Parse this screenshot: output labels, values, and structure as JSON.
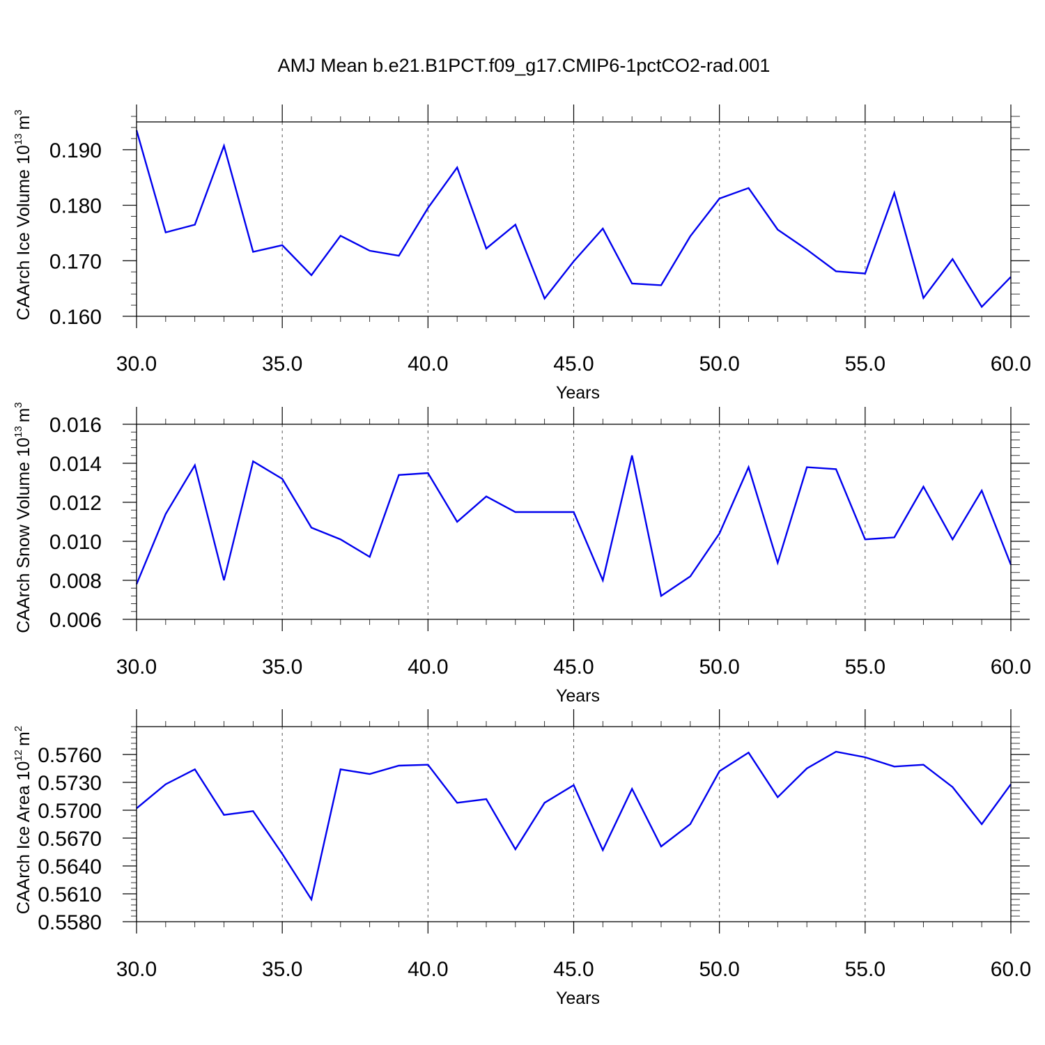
{
  "title": "AMJ Mean b.e21.B1PCT.f09_g17.CMIP6-1pctCO2-rad.001",
  "colors": {
    "series": "#0000ee",
    "grid": "#555555",
    "axis": "#000000"
  },
  "chart_data": [
    {
      "type": "line",
      "ylabel": "CAArch Ice Volume 10",
      "ylabel_exp": "13",
      "ylabel_unit": "m",
      "ylabel_unit_exp": "3",
      "xlabel": "Years",
      "xlim": [
        30,
        60
      ],
      "ylim": [
        0.16,
        0.195
      ],
      "xticks": [
        30,
        35,
        40,
        45,
        50,
        55,
        60
      ],
      "xtick_labels": [
        "30.0",
        "35.0",
        "40.0",
        "45.0",
        "50.0",
        "55.0",
        "60.0"
      ],
      "yticks": [
        0.16,
        0.17,
        0.18,
        0.19
      ],
      "ytick_labels": [
        "0.160",
        "0.170",
        "0.180",
        "0.190"
      ],
      "yminor_step": 0.002,
      "grid": "dashed vertical at major x ticks",
      "x": [
        30,
        31,
        32,
        33,
        34,
        35,
        36,
        37,
        38,
        39,
        40,
        41,
        42,
        43,
        44,
        45,
        46,
        47,
        48,
        49,
        50,
        51,
        52,
        53,
        54,
        55,
        56,
        57,
        58,
        59,
        60
      ],
      "values": [
        0.1935,
        0.1751,
        0.1765,
        0.1907,
        0.1716,
        0.1728,
        0.1674,
        0.1745,
        0.1718,
        0.1709,
        0.1795,
        0.1868,
        0.1722,
        0.1765,
        0.1632,
        0.1699,
        0.1758,
        0.1659,
        0.1656,
        0.1744,
        0.1812,
        0.1831,
        0.1756,
        0.172,
        0.1681,
        0.1677,
        0.1822,
        0.1633,
        0.1703,
        0.1617,
        0.1671
      ]
    },
    {
      "type": "line",
      "ylabel": "CAArch Snow Volume 10",
      "ylabel_exp": "13",
      "ylabel_unit": "m",
      "ylabel_unit_exp": "3",
      "xlabel": "Years",
      "xlim": [
        30,
        60
      ],
      "ylim": [
        0.006,
        0.016
      ],
      "xticks": [
        30,
        35,
        40,
        45,
        50,
        55,
        60
      ],
      "xtick_labels": [
        "30.0",
        "35.0",
        "40.0",
        "45.0",
        "50.0",
        "55.0",
        "60.0"
      ],
      "yticks": [
        0.006,
        0.008,
        0.01,
        0.012,
        0.014,
        0.016
      ],
      "ytick_labels": [
        "0.006",
        "0.008",
        "0.010",
        "0.012",
        "0.014",
        "0.016"
      ],
      "yminor_step": 0.0004,
      "grid": "dashed vertical at major x ticks",
      "x": [
        30,
        31,
        32,
        33,
        34,
        35,
        36,
        37,
        38,
        39,
        40,
        41,
        42,
        43,
        44,
        45,
        46,
        47,
        48,
        49,
        50,
        51,
        52,
        53,
        54,
        55,
        56,
        57,
        58,
        59,
        60
      ],
      "values": [
        0.0078,
        0.0114,
        0.0139,
        0.008,
        0.0141,
        0.0132,
        0.0107,
        0.0101,
        0.0092,
        0.0134,
        0.0135,
        0.011,
        0.0123,
        0.0115,
        0.0115,
        0.0115,
        0.008,
        0.0144,
        0.0072,
        0.0082,
        0.0104,
        0.0138,
        0.0089,
        0.0138,
        0.0137,
        0.0101,
        0.0102,
        0.0128,
        0.0101,
        0.0126,
        0.0088
      ]
    },
    {
      "type": "line",
      "ylabel": "CAArch Ice Area 10",
      "ylabel_exp": "12",
      "ylabel_unit": "m",
      "ylabel_unit_exp": "2",
      "xlabel": "Years",
      "xlim": [
        30,
        60
      ],
      "ylim": [
        0.558,
        0.579
      ],
      "xticks": [
        30,
        35,
        40,
        45,
        50,
        55,
        60
      ],
      "xtick_labels": [
        "30.0",
        "35.0",
        "40.0",
        "45.0",
        "50.0",
        "55.0",
        "60.0"
      ],
      "yticks": [
        0.558,
        0.561,
        0.564,
        0.567,
        0.57,
        0.573,
        0.576
      ],
      "ytick_labels": [
        "0.5580",
        "0.5610",
        "0.5640",
        "0.5670",
        "0.5700",
        "0.5730",
        "0.5760"
      ],
      "yminor_step": 0.0006,
      "grid": "dashed vertical at major x ticks",
      "x": [
        30,
        31,
        32,
        33,
        34,
        35,
        36,
        37,
        38,
        39,
        40,
        41,
        42,
        43,
        44,
        45,
        46,
        47,
        48,
        49,
        50,
        51,
        52,
        53,
        54,
        55,
        56,
        57,
        58,
        59,
        60
      ],
      "values": [
        0.5702,
        0.5728,
        0.5744,
        0.5695,
        0.5699,
        0.5653,
        0.5604,
        0.5744,
        0.5739,
        0.5748,
        0.5749,
        0.5708,
        0.5712,
        0.5658,
        0.5708,
        0.5727,
        0.5657,
        0.5723,
        0.5661,
        0.5685,
        0.5742,
        0.5762,
        0.5714,
        0.5745,
        0.5763,
        0.5757,
        0.5747,
        0.5749,
        0.5725,
        0.5685,
        0.5728
      ]
    }
  ]
}
